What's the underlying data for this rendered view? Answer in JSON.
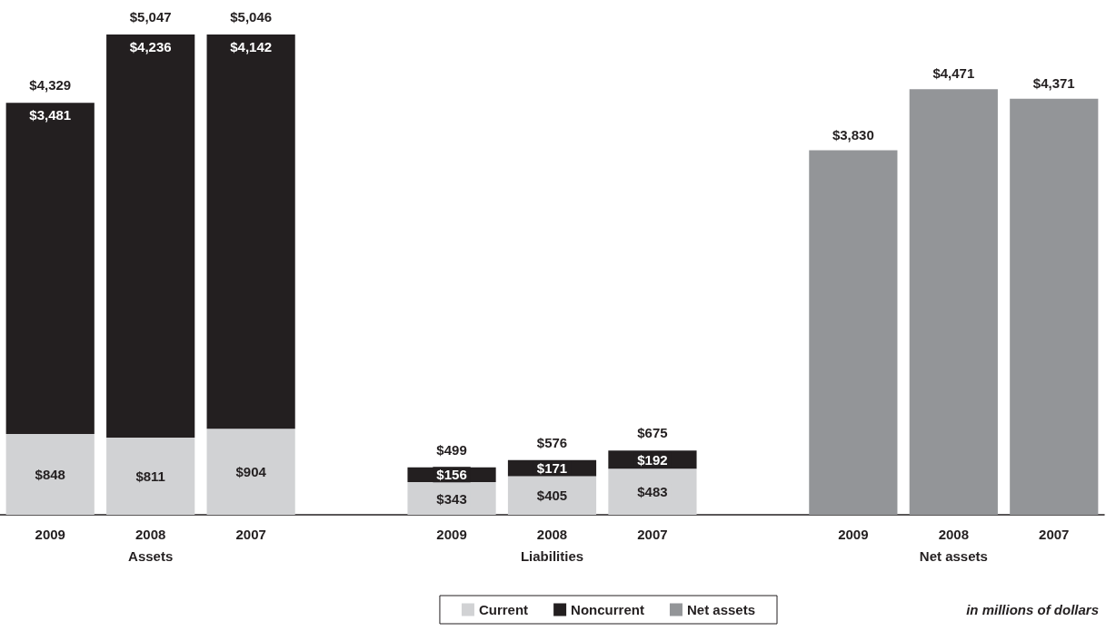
{
  "chart_data": {
    "type": "bar",
    "stacked": true,
    "data_labels": true,
    "legend": "bottom",
    "categories": [
      "2009",
      "2008",
      "2007",
      null,
      "2009",
      "2008",
      "2007",
      null,
      "2009",
      "2008",
      "2007"
    ],
    "series": [
      {
        "name": "Current",
        "color": "#d1d2d4",
        "values": [
          848,
          811,
          904,
          null,
          343,
          405,
          483,
          null,
          null,
          null,
          null
        ],
        "value_labels": [
          "$848",
          "$811",
          "$904",
          null,
          "$343",
          "$405",
          "$483",
          null,
          null,
          null,
          null
        ]
      },
      {
        "name": "Noncurrent",
        "color": "#231f20",
        "values": [
          3481,
          4236,
          4142,
          null,
          156,
          171,
          192,
          null,
          null,
          null,
          null
        ],
        "value_labels": [
          "$3,481",
          "$4,236",
          "$4,142",
          null,
          "$156",
          "$171",
          "$192",
          null,
          null,
          null,
          null
        ]
      },
      {
        "name": "Net assets",
        "color": "#939598",
        "values": [
          null,
          null,
          null,
          null,
          null,
          null,
          null,
          null,
          3830,
          4471,
          4371
        ],
        "value_labels": [
          null,
          null,
          null,
          null,
          null,
          null,
          null,
          null,
          "$3,830",
          "$4,471",
          "$4,371"
        ]
      }
    ],
    "totals": [
      "$4,329",
      "$5,047",
      "$5,046",
      null,
      "$499",
      "$576",
      "$675",
      null,
      null,
      null,
      null
    ],
    "annotations": [
      "Assets",
      "Liabilities",
      "Net assets",
      "in millions of dollars"
    ]
  }
}
